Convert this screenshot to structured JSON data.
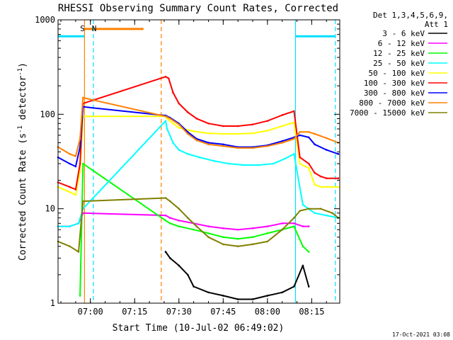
{
  "chart_data": {
    "type": "line",
    "title": "RHESSI Observing Summary Count Rates, Corrected",
    "xlabel": "Start Time (10-Jul-02 06:49:02)",
    "ylabel": "Corrected Count Rate (s⁻¹ detector⁻¹)",
    "ylabel_main": "Corrected Count Rate (s",
    "ylabel_sup1": "-1",
    "ylabel_mid": " detector",
    "ylabel_sup2": "-1",
    "ylabel_end": ")",
    "y_scale": "log",
    "ylim": [
      1,
      1000
    ],
    "xlim": [
      "06:49:02",
      "08:24:30"
    ],
    "x_ticks": [
      "07:00",
      "07:15",
      "07:30",
      "07:45",
      "08:00",
      "08:15"
    ],
    "y_ticks": [
      "1",
      "10",
      "100",
      "1000"
    ],
    "legend_header": [
      "Det 1,3,4,5,6,9,",
      "Att 1"
    ],
    "legend_position": "right",
    "footer": "17-Oct-2021 03:08",
    "annotations": [
      {
        "text": "S",
        "time": "06:56:30",
        "color": "#ff8000"
      },
      {
        "text": "N",
        "time": "07:00:30",
        "color": "#00e0ff"
      }
    ],
    "bars": [
      {
        "name": "saa",
        "from": "06:58:00",
        "to": "07:18:00",
        "color": "#ff8000"
      },
      {
        "name": "night1",
        "from": "06:49:02",
        "to": "06:58:00",
        "color": "#00e0ff"
      },
      {
        "name": "night2",
        "from": "08:09:30",
        "to": "08:23:00",
        "color": "#00e0ff"
      }
    ],
    "vlines": [
      {
        "time": "06:58:00",
        "color": "#ff8000",
        "style": "solid"
      },
      {
        "time": "07:01:00",
        "color": "#00e0ff",
        "style": "dashed"
      },
      {
        "time": "07:24:00",
        "color": "#ff8000",
        "style": "dashed"
      },
      {
        "time": "08:09:30",
        "color": "#00e0ff",
        "style": "solid"
      },
      {
        "time": "08:23:00",
        "color": "#00e0ff",
        "style": "dashed"
      }
    ],
    "series": [
      {
        "name": "3 - 6 keV",
        "color": "#000000",
        "x": [
          "07:25:30",
          "07:27",
          "07:30",
          "07:33",
          "07:35",
          "07:40",
          "07:45",
          "07:50",
          "07:55",
          "08:00",
          "08:05",
          "08:09",
          "08:12",
          "08:14"
        ],
        "values": [
          3.5,
          3,
          2.5,
          2,
          1.5,
          1.3,
          1.2,
          1.1,
          1.1,
          1.2,
          1.3,
          1.5,
          2.5,
          1.5
        ]
      },
      {
        "name": "6 - 12 keV",
        "color": "#ff00ff",
        "x": [
          "06:49:02",
          "06:53",
          "06:56",
          "06:57:30",
          "07:25:30",
          "07:27",
          "07:30",
          "07:35",
          "07:40",
          "07:45",
          "07:50",
          "07:55",
          "08:00",
          "08:05",
          "08:09",
          "08:12",
          "08:14"
        ],
        "values": [
          6.5,
          6.5,
          7,
          9,
          8.5,
          8,
          7.5,
          7,
          6.5,
          6.2,
          6,
          6.2,
          6.5,
          7,
          7,
          6.5,
          6.5
        ]
      },
      {
        "name": "12 - 25 keV",
        "color": "#00ff00",
        "x": [
          "06:56:30",
          "06:57:30",
          "07:25:30",
          "07:27",
          "07:30",
          "07:35",
          "07:40",
          "07:45",
          "07:50",
          "07:55",
          "08:00",
          "08:05",
          "08:09",
          "08:12",
          "08:14"
        ],
        "values": [
          1.2,
          30,
          7.5,
          7,
          6.5,
          6,
          5.5,
          5,
          4.8,
          5,
          5.5,
          6,
          6.5,
          4,
          3.5
        ]
      },
      {
        "name": "25 - 50 keV",
        "color": "#00ffff",
        "x": [
          "06:49:02",
          "06:53",
          "06:56",
          "06:57:30",
          "07:25:30",
          "07:26",
          "07:28",
          "07:30",
          "07:33",
          "07:37",
          "07:42",
          "07:47",
          "07:52",
          "07:57",
          "08:02",
          "08:06",
          "08:09",
          "08:12",
          "08:16",
          "08:20",
          "08:24"
        ],
        "values": [
          6.5,
          6.5,
          7,
          10,
          85,
          70,
          50,
          42,
          38,
          35,
          32,
          30,
          29,
          29,
          30,
          34,
          38,
          11,
          9,
          8.5,
          8
        ]
      },
      {
        "name": "50 - 100 keV",
        "color": "#ffff00",
        "x": [
          "06:49:02",
          "06:53",
          "06:55",
          "06:56:30",
          "06:57:30",
          "07:25:30",
          "07:26",
          "07:28",
          "07:30",
          "07:35",
          "07:40",
          "07:45",
          "07:50",
          "07:55",
          "08:00",
          "08:05",
          "08:09",
          "08:11",
          "08:14",
          "08:16",
          "08:18",
          "08:20",
          "08:24"
        ],
        "values": [
          17,
          15,
          14,
          25,
          95,
          95,
          90,
          80,
          72,
          66,
          63,
          62,
          62,
          63,
          67,
          75,
          82,
          30,
          27,
          18,
          17,
          17,
          17
        ]
      },
      {
        "name": "100 - 300 keV",
        "color": "#ff0000",
        "x": [
          "06:49:02",
          "06:53",
          "06:55",
          "06:56:30",
          "06:57:30",
          "07:25:30",
          "07:26:30",
          "07:28",
          "07:30",
          "07:33",
          "07:36",
          "07:40",
          "07:45",
          "07:50",
          "07:55",
          "08:00",
          "08:05",
          "08:09",
          "08:11",
          "08:14",
          "08:16",
          "08:18",
          "08:20",
          "08:24"
        ],
        "values": [
          19,
          17,
          16,
          30,
          130,
          250,
          240,
          170,
          130,
          105,
          90,
          80,
          75,
          75,
          78,
          85,
          98,
          108,
          35,
          30,
          24,
          22,
          21,
          21
        ]
      },
      {
        "name": "300 - 800 keV",
        "color": "#0000ff",
        "x": [
          "06:49:02",
          "06:53",
          "06:55",
          "06:56:30",
          "06:57:30",
          "07:25:30",
          "07:27",
          "07:30",
          "07:33",
          "07:36",
          "07:40",
          "07:45",
          "07:50",
          "07:55",
          "08:00",
          "08:05",
          "08:09",
          "08:11",
          "08:14",
          "08:16",
          "08:20",
          "08:24"
        ],
        "values": [
          35,
          30,
          28,
          45,
          120,
          97,
          92,
          80,
          65,
          55,
          50,
          48,
          45,
          45,
          47,
          52,
          57,
          60,
          57,
          48,
          42,
          38
        ]
      },
      {
        "name": "800 - 7000 keV",
        "color": "#ff8000",
        "x": [
          "06:49:02",
          "06:53",
          "06:55",
          "06:56:30",
          "06:57:30",
          "07:25:30",
          "07:27",
          "07:30",
          "07:33",
          "07:36",
          "07:40",
          "07:45",
          "07:50",
          "07:55",
          "08:00",
          "08:05",
          "08:09",
          "08:11",
          "08:14",
          "08:16",
          "08:20",
          "08:24"
        ],
        "values": [
          45,
          38,
          36,
          55,
          150,
          95,
          90,
          78,
          62,
          53,
          48,
          46,
          44,
          44,
          46,
          50,
          55,
          65,
          65,
          62,
          56,
          50
        ]
      },
      {
        "name": "7000 - 15000 keV",
        "color": "#808000",
        "x": [
          "06:49:02",
          "06:53",
          "06:56",
          "06:57:30",
          "07:25:30",
          "07:27",
          "07:30",
          "07:33",
          "07:36",
          "07:40",
          "07:45",
          "07:50",
          "07:55",
          "08:00",
          "08:05",
          "08:09",
          "08:11",
          "08:14",
          "08:18",
          "08:22",
          "08:24"
        ],
        "values": [
          4.5,
          4,
          3.5,
          12,
          13,
          12,
          10,
          8,
          6.5,
          5,
          4.2,
          4,
          4.2,
          4.5,
          6,
          8,
          9.5,
          10,
          10,
          9,
          8
        ]
      }
    ]
  }
}
